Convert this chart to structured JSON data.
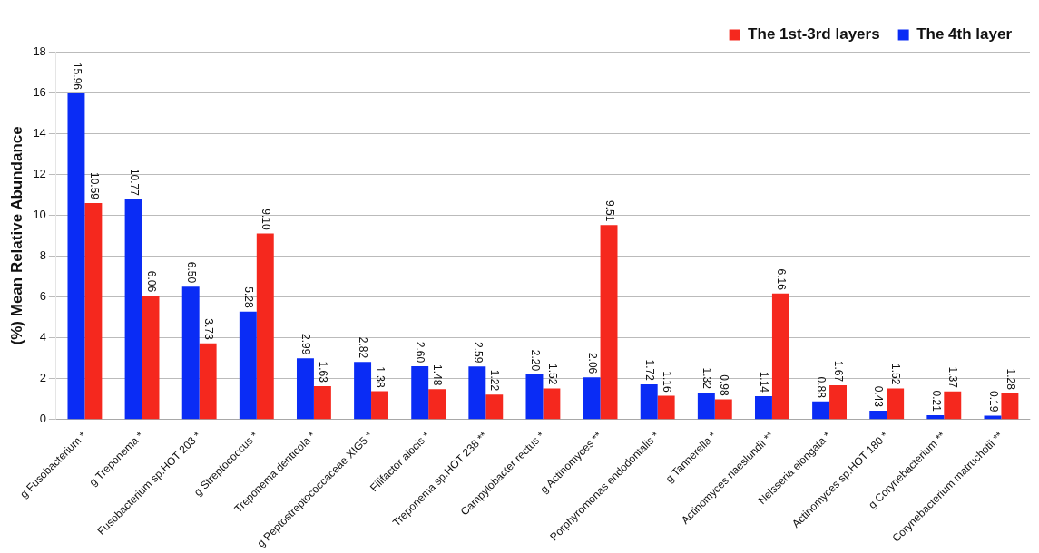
{
  "chart_data": {
    "type": "bar",
    "ylabel": "(%) Mean Relative Abundance",
    "categories": [
      "g Fusobacterium *",
      "g Treponema *",
      "Fusobacterium sp.HOT 203 *",
      "g Streptococcus *",
      "Treponema denticola *",
      "g Peptostreptococcaceae XIG5 *",
      "Filifactor alocis *",
      "Treponema sp.HOT 238 **",
      "Campylobacter rectus *",
      "g Actinomyces **",
      "Porphyromonas endodontalis *",
      "g Tannerella *",
      "Actinomyces naeslundii **",
      "Neisseria elongata *",
      "Actinomyces sp.HOT 180 *",
      "g Corynebacterium **",
      "Corynebacterium matruchotii **"
    ],
    "series": [
      {
        "name": "The 4th layer",
        "color": "#0a2cf5",
        "values": [
          15.96,
          10.77,
          6.5,
          5.28,
          2.99,
          2.82,
          2.6,
          2.59,
          2.2,
          2.06,
          1.72,
          1.32,
          1.14,
          0.88,
          0.43,
          0.21,
          0.19
        ],
        "value_labels": [
          "15.96",
          "10.77",
          "6.50",
          "5.28",
          "2.99",
          "2.82",
          "2.60",
          "2.59",
          "2.20",
          "2.06",
          "1.72",
          "1.32",
          "1.14",
          "0.88",
          "0.43",
          "0.21",
          "0.19"
        ]
      },
      {
        "name": "The 1st-3rd layers",
        "color": "#f5281e",
        "values": [
          10.59,
          6.06,
          3.73,
          9.1,
          1.63,
          1.38,
          1.48,
          1.22,
          1.52,
          9.51,
          1.16,
          0.98,
          6.16,
          1.67,
          1.52,
          1.37,
          1.28
        ],
        "value_labels": [
          "10.59",
          "6.06",
          "3.73",
          "9.10",
          "1.63",
          "1.38",
          "1.48",
          "1.22",
          "1.52",
          "9.51",
          "1.16",
          "0.98",
          "6.16",
          "1.67",
          "1.52",
          "1.37",
          "1.28"
        ]
      }
    ],
    "ylim": [
      0,
      18
    ],
    "yticks": [
      0,
      2,
      4,
      6,
      8,
      10,
      12,
      14,
      16,
      18
    ],
    "grid": "y",
    "legend": "top right"
  }
}
